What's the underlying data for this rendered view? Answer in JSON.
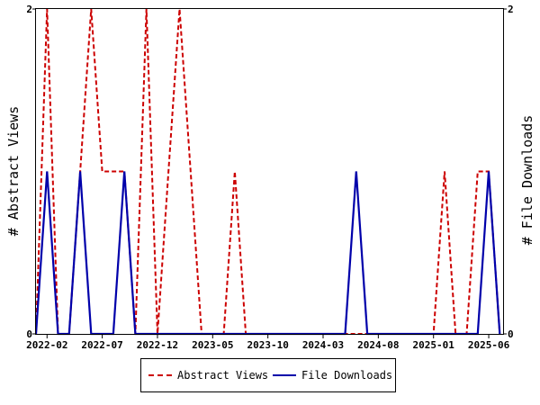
{
  "chart_data": {
    "type": "line",
    "xlabel": "",
    "y_left_label": "# Abstract Views",
    "y_right_label": "# File Downloads",
    "y_left_ticks": [
      "0",
      "2"
    ],
    "y_right_ticks": [
      "0",
      "2"
    ],
    "ylim": [
      0,
      2
    ],
    "x_tick_labels": [
      "2022-02",
      "2022-07",
      "2022-12",
      "2023-05",
      "2023-10",
      "2024-03",
      "2024-08",
      "2025-01",
      "2025-06"
    ],
    "x_tick_months": [
      1,
      6,
      11,
      16,
      21,
      26,
      31,
      36,
      41
    ],
    "xlim": [
      0,
      42.3
    ],
    "grid": false,
    "legend_position": "bottom-center",
    "series": [
      {
        "name": "Abstract Views",
        "color": "#cc0000",
        "dash": "dashed",
        "points": [
          [
            0,
            0
          ],
          [
            1,
            2
          ],
          [
            2,
            0
          ],
          [
            3,
            0
          ],
          [
            4,
            1
          ],
          [
            5,
            2
          ],
          [
            6,
            1
          ],
          [
            7,
            1
          ],
          [
            8,
            1
          ],
          [
            9,
            0
          ],
          [
            10,
            2
          ],
          [
            11,
            0
          ],
          [
            12,
            1
          ],
          [
            13,
            2
          ],
          [
            14,
            1
          ],
          [
            15,
            0
          ],
          [
            16,
            0
          ],
          [
            17,
            0
          ],
          [
            18,
            1
          ],
          [
            19,
            0
          ],
          [
            20,
            0
          ],
          [
            21,
            0
          ],
          [
            22,
            0
          ],
          [
            23,
            0
          ],
          [
            24,
            0
          ],
          [
            25,
            0
          ],
          [
            26,
            0
          ],
          [
            27,
            0
          ],
          [
            28,
            0
          ],
          [
            29,
            0
          ],
          [
            30,
            0
          ],
          [
            31,
            0
          ],
          [
            32,
            0
          ],
          [
            33,
            0
          ],
          [
            34,
            0
          ],
          [
            35,
            0
          ],
          [
            36,
            0
          ],
          [
            37,
            1
          ],
          [
            38,
            0
          ],
          [
            39,
            0
          ],
          [
            40,
            1
          ],
          [
            41,
            1
          ],
          [
            42,
            0
          ]
        ]
      },
      {
        "name": "File Downloads",
        "color": "#0000aa",
        "dash": "solid",
        "points": [
          [
            0,
            0
          ],
          [
            1,
            1
          ],
          [
            2,
            0
          ],
          [
            3,
            0
          ],
          [
            4,
            1
          ],
          [
            5,
            0
          ],
          [
            6,
            0
          ],
          [
            7,
            0
          ],
          [
            8,
            1
          ],
          [
            9,
            0
          ],
          [
            10,
            0
          ],
          [
            11,
            0
          ],
          [
            12,
            0
          ],
          [
            13,
            0
          ],
          [
            14,
            0
          ],
          [
            15,
            0
          ],
          [
            16,
            0
          ],
          [
            17,
            0
          ],
          [
            18,
            0
          ],
          [
            19,
            0
          ],
          [
            20,
            0
          ],
          [
            21,
            0
          ],
          [
            22,
            0
          ],
          [
            23,
            0
          ],
          [
            24,
            0
          ],
          [
            25,
            0
          ],
          [
            26,
            0
          ],
          [
            27,
            0
          ],
          [
            28,
            0
          ],
          [
            29,
            1
          ],
          [
            30,
            0
          ],
          [
            31,
            0
          ],
          [
            32,
            0
          ],
          [
            33,
            0
          ],
          [
            34,
            0
          ],
          [
            35,
            0
          ],
          [
            36,
            0
          ],
          [
            37,
            0
          ],
          [
            38,
            0
          ],
          [
            39,
            0
          ],
          [
            40,
            0
          ],
          [
            41,
            1
          ],
          [
            42,
            0
          ]
        ]
      }
    ]
  },
  "legend": {
    "abstract_views_label": "Abstract Views",
    "file_downloads_label": "File Downloads"
  }
}
